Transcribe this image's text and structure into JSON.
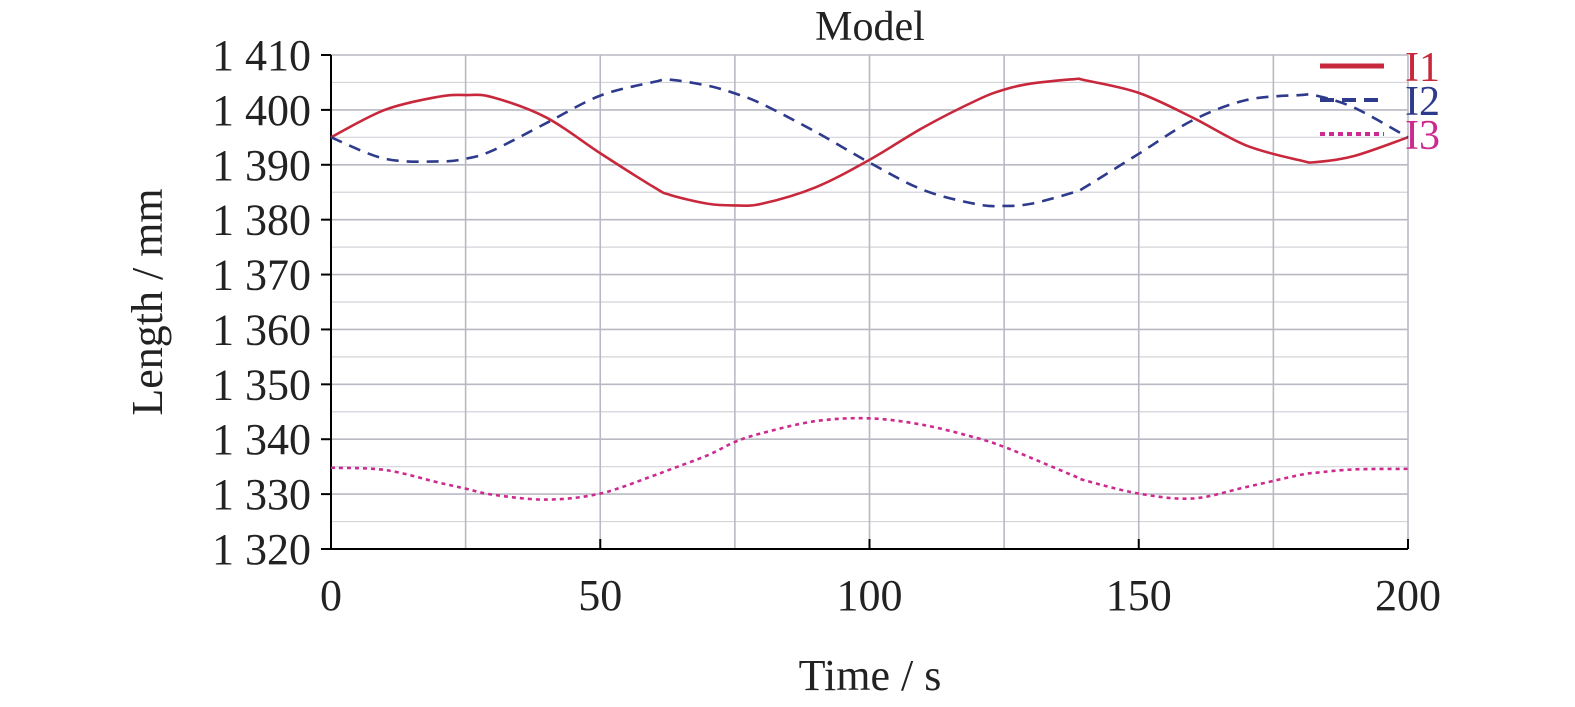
{
  "chart_data": {
    "type": "line",
    "title": "Model",
    "xlabel": "Time / s",
    "ylabel": "Length / mm",
    "xlim": [
      0,
      200
    ],
    "ylim": [
      1320,
      1410
    ],
    "xticks": [
      0,
      50,
      100,
      150,
      200
    ],
    "xtick_labels": [
      "0",
      "50",
      "100",
      "150",
      "200"
    ],
    "yticks": [
      1320,
      1330,
      1340,
      1350,
      1360,
      1370,
      1380,
      1390,
      1400,
      1410
    ],
    "ytick_labels": [
      "1 320",
      "1 330",
      "1 340",
      "1 350",
      "1 360",
      "1 370",
      "1 380",
      "1 390",
      "1 400",
      "1 410"
    ],
    "grid": true,
    "legend_position": "top-right",
    "x": [
      0,
      10,
      20,
      25,
      30,
      40,
      50,
      60,
      63,
      70,
      75,
      80,
      90,
      100,
      110,
      120,
      125,
      130,
      138,
      140,
      150,
      160,
      170,
      180,
      183,
      190,
      200
    ],
    "series": [
      {
        "name": "I1",
        "color": "#c8283c",
        "style": "solid",
        "values": [
          1395.0,
          1400.0,
          1402.4,
          1402.7,
          1402.3,
          1398.6,
          1392.1,
          1385.9,
          1384.5,
          1382.9,
          1382.6,
          1382.9,
          1385.9,
          1390.9,
          1396.8,
          1401.8,
          1403.7,
          1404.8,
          1405.6,
          1405.4,
          1403.1,
          1398.6,
          1393.5,
          1390.8,
          1390.5,
          1391.6,
          1395.0
        ]
      },
      {
        "name": "I2",
        "color": "#2e3a8c",
        "style": "dashed",
        "values": [
          1395.0,
          1391.1,
          1390.6,
          1391.1,
          1392.6,
          1397.6,
          1402.6,
          1405.1,
          1405.5,
          1404.4,
          1403.0,
          1401.1,
          1396.0,
          1390.4,
          1385.4,
          1382.8,
          1382.5,
          1382.9,
          1385.0,
          1385.9,
          1392.0,
          1398.1,
          1401.8,
          1402.7,
          1402.6,
          1400.4,
          1395.0
        ]
      },
      {
        "name": "I3",
        "color": "#cc2a8f",
        "style": "dotted",
        "values": [
          1334.8,
          1334.4,
          1332.1,
          1331.0,
          1329.9,
          1329.0,
          1330.1,
          1333.4,
          1334.5,
          1337.1,
          1339.5,
          1341.1,
          1343.3,
          1343.8,
          1342.6,
          1340.2,
          1338.6,
          1336.6,
          1333.3,
          1332.5,
          1330.1,
          1329.2,
          1331.3,
          1333.5,
          1333.9,
          1334.5,
          1334.6
        ]
      }
    ]
  }
}
